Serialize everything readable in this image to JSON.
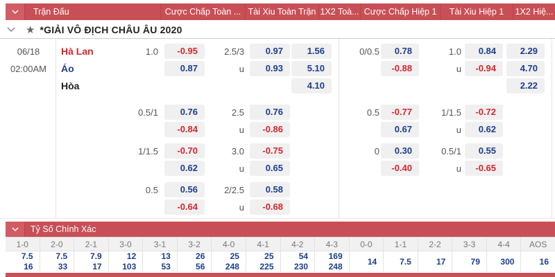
{
  "header": {
    "columns": [
      "Trận Đấu",
      "Cược Chấp Toàn ...",
      "Tài Xiu Toàn Trận",
      "1X2 Toà...",
      "Cược Chấp Hiệp 1",
      "Tài Xiu Hiệp 1",
      "1X2 Hiệ..."
    ]
  },
  "league": {
    "name": "*GIẢI VÔ ĐỊCH CHÂU ÂU 2020"
  },
  "match": {
    "date": "06/18",
    "time": "02:00AM",
    "home": "Hà Lan",
    "away": "Áo",
    "draw": "Hòa"
  },
  "colors": {
    "accent_red": "#c94f56",
    "odd_blue": "#1c3e8c",
    "odd_red": "#d6252b"
  },
  "odds": {
    "u_label": "u",
    "blocks": [
      {
        "ft_hc": {
          "line": "1.0",
          "a": "-0.95",
          "b": "0.87"
        },
        "ft_ou": {
          "line": "2.5/3",
          "a": "0.97",
          "b": "0.93"
        },
        "ft_1x2": {
          "h": "1.56",
          "a": "5.10",
          "d": "4.10"
        },
        "h1_hc": {
          "line": "0/0.5",
          "a": "0.78",
          "b": "-0.88"
        },
        "h1_ou": {
          "line": "1.0",
          "a": "0.84",
          "b": "-0.94"
        },
        "h1_1x2": {
          "h": "2.29",
          "a": "4.70",
          "d": "2.22"
        }
      },
      {
        "ft_hc": {
          "line": "0.5/1",
          "a": "0.76",
          "b": "-0.84"
        },
        "ft_ou": {
          "line": "2.5",
          "a": "0.76",
          "b": "-0.86"
        },
        "h1_hc": {
          "line": "0.5",
          "a": "-0.77",
          "b": "0.67"
        },
        "h1_ou": {
          "line": "1/1.5",
          "a": "-0.72",
          "b": "0.62"
        }
      },
      {
        "ft_hc": {
          "line": "1/1.5",
          "a": "-0.70",
          "b": "0.62"
        },
        "ft_ou": {
          "line": "3.0",
          "a": "-0.75",
          "b": "0.65"
        },
        "h1_hc": {
          "line": "0",
          "a": "0.30",
          "b": "-0.40"
        },
        "h1_ou": {
          "line": "0.5/1",
          "a": "0.55",
          "b": "-0.65"
        }
      },
      {
        "ft_hc": {
          "line": "0.5",
          "a": "0.56",
          "b": "-0.64"
        },
        "ft_ou": {
          "line": "2/2.5",
          "a": "0.58",
          "b": "-0.68"
        }
      }
    ]
  },
  "correct_score": {
    "title": "Tỷ Số Chính Xác",
    "columns": [
      "1-0",
      "2-0",
      "2-1",
      "3-0",
      "3-1",
      "3-2",
      "4-0",
      "4-1",
      "4-2",
      "4-3",
      "0-0",
      "1-1",
      "2-2",
      "3-3",
      "4-4",
      "AOS"
    ],
    "top": [
      "7.5",
      "7.5",
      "7.9",
      "12",
      "13",
      "26",
      "25",
      "25",
      "54",
      "169"
    ],
    "bottom": [
      "16",
      "33",
      "17",
      "103",
      "53",
      "56",
      "248",
      "225",
      "230",
      "248"
    ],
    "single": [
      "14",
      "7.5",
      "17",
      "79",
      "300",
      "16"
    ]
  }
}
